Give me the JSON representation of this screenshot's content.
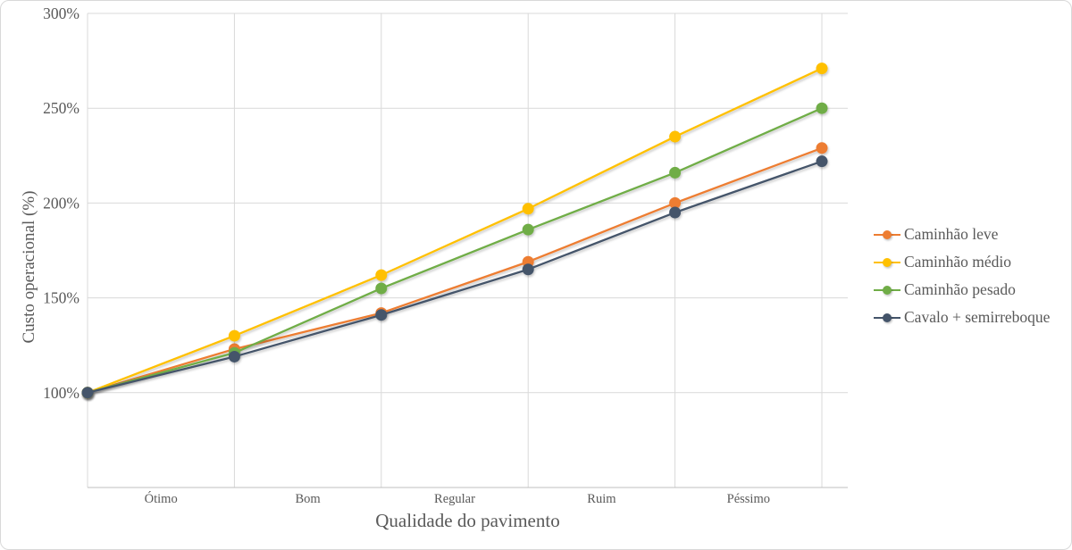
{
  "chart_data": {
    "type": "line",
    "title": "",
    "xlabel": "Qualidade do pavimento",
    "ylabel": "Custo operacional (%)",
    "categories": [
      "Ótimo",
      "Bom",
      "Regular",
      "Ruim",
      "Péssimo"
    ],
    "category_label_placement": "between-gridlines",
    "x_points_per_series": 6,
    "y_axis": {
      "min": 50,
      "max": 300,
      "tick_start": 100,
      "tick_step": 50
    },
    "y_tick_labels": [
      "100%",
      "150%",
      "200%",
      "250%",
      "300%"
    ],
    "grid": true,
    "legend_position": "right",
    "marker": "circle",
    "series": [
      {
        "name": "Caminhão leve",
        "color": "#ED7D31",
        "values": [
          100,
          123,
          142,
          169,
          200,
          229
        ]
      },
      {
        "name": "Caminhão médio",
        "color": "#FFC000",
        "values": [
          100,
          130,
          162,
          197,
          235,
          271
        ]
      },
      {
        "name": "Caminhão pesado",
        "color": "#70AD47",
        "values": [
          100,
          121,
          155,
          186,
          216,
          250
        ]
      },
      {
        "name": "Cavalo + semirreboque",
        "color": "#44546A",
        "values": [
          100,
          119,
          141,
          165,
          195,
          222
        ]
      }
    ],
    "colors": {
      "gridline": "#D9D9D9",
      "axis_line": "#BFBFBF",
      "text": "#595959"
    }
  }
}
